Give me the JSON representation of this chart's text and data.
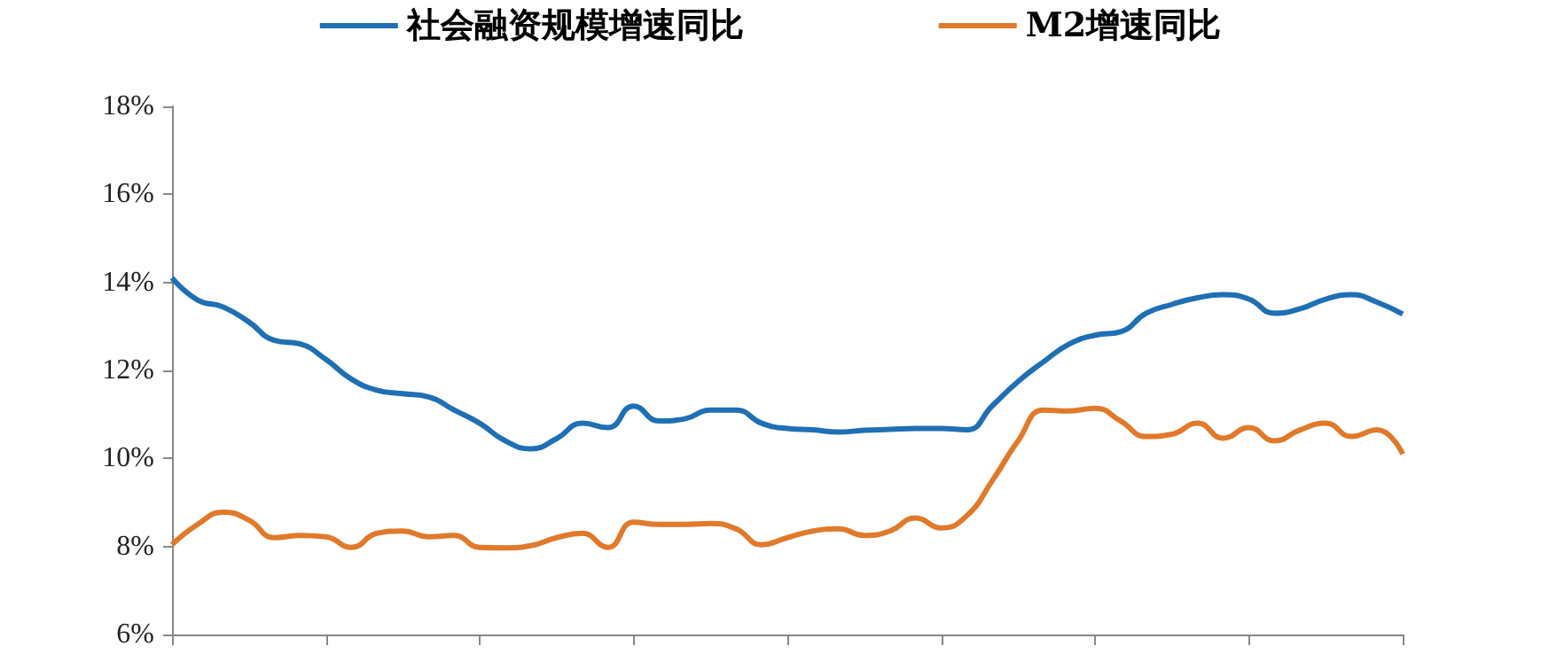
{
  "chart_data": {
    "type": "line",
    "categories": [
      null,
      null,
      null,
      null,
      null,
      null,
      null,
      null,
      null,
      null,
      null,
      null,
      null,
      null,
      null,
      null,
      null,
      null,
      null,
      null,
      null,
      null,
      null,
      null,
      null,
      null,
      null,
      null,
      null,
      null,
      null,
      null,
      null,
      null,
      null,
      null,
      null,
      null,
      null,
      null,
      null,
      null,
      null,
      null,
      null,
      null,
      null,
      null,
      null
    ],
    "series": [
      {
        "name": "社会融资规模增速同比",
        "color": "#1f6fb4",
        "values": [
          14.1,
          13.6,
          13.44,
          13.1,
          12.68,
          12.6,
          12.25,
          11.8,
          11.55,
          11.47,
          11.4,
          11.1,
          10.8,
          10.4,
          10.22,
          10.45,
          10.8,
          10.7,
          11.19,
          10.85,
          10.9,
          11.1,
          11.1,
          10.8,
          10.68,
          10.65,
          10.6,
          10.64,
          10.66,
          10.68,
          10.68,
          10.65,
          11.2,
          11.75,
          12.2,
          12.6,
          12.8,
          12.88,
          13.3,
          13.5,
          13.65,
          13.72,
          13.62,
          13.3,
          13.4,
          13.62,
          13.72,
          13.55,
          13.28
        ]
      },
      {
        "name": "M2增速同比",
        "color": "#e07a2a",
        "values": [
          8.04,
          8.5,
          8.78,
          8.6,
          8.2,
          8.25,
          8.22,
          7.98,
          8.3,
          8.35,
          8.22,
          8.25,
          7.98,
          7.97,
          8.02,
          8.2,
          8.3,
          7.98,
          8.55,
          8.5,
          8.5,
          8.52,
          8.4,
          8.04,
          8.2,
          8.35,
          8.4,
          8.25,
          8.35,
          8.65,
          8.42,
          8.7,
          9.5,
          10.4,
          11.1,
          11.08,
          11.14,
          10.85,
          10.5,
          10.55,
          10.8,
          10.46,
          10.7,
          10.4,
          10.65,
          10.8,
          10.5,
          10.65,
          10.1
        ]
      }
    ],
    "ylim": [
      6,
      18
    ],
    "yticks": [
      {
        "value": 6,
        "label": "6%"
      },
      {
        "value": 8,
        "label": "8%"
      },
      {
        "value": 10,
        "label": "10%"
      },
      {
        "value": 12,
        "label": "12%"
      },
      {
        "value": 14,
        "label": "14%"
      },
      {
        "value": 16,
        "label": "16%"
      },
      {
        "value": 18,
        "label": "18%"
      }
    ],
    "tick_labels": "y",
    "grid": false,
    "legend": "top",
    "marker": "none",
    "line_style": "solid"
  }
}
